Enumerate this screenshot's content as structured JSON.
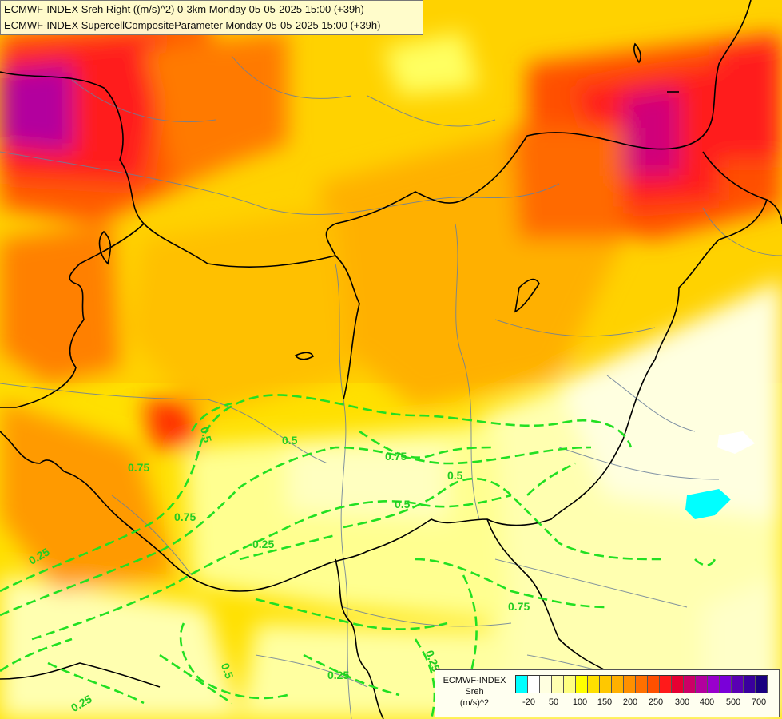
{
  "title": {
    "line1": "ECMWF-INDEX Sreh Right ((m/s)^2) 0-3km Monday 05-05-2025 15:00 (+39h)",
    "line2": "ECMWF-INDEX SupercellCompositeParameter Monday 05-05-2025 15:00 (+39h)"
  },
  "legend": {
    "source": "ECMWF-INDEX",
    "variable": "Sreh",
    "unit": "(m/s)^2",
    "colors": [
      "#00ffff",
      "#ffffff",
      "#ffffe0",
      "#ffffb0",
      "#ffff80",
      "#ffff00",
      "#ffe000",
      "#ffc800",
      "#ffb000",
      "#ff9000",
      "#ff7000",
      "#ff5000",
      "#ff1a1a",
      "#e60032",
      "#cc0066",
      "#b3009e",
      "#9900cc",
      "#7a00d9",
      "#5a00b3",
      "#3a009e",
      "#1a0080"
    ],
    "ticks": [
      "-20",
      "50",
      "100",
      "150",
      "200",
      "250",
      "300",
      "400",
      "500",
      "700"
    ]
  },
  "contour_labels": [
    "0.5",
    "0.75",
    "0.5",
    "0.75",
    "0.25",
    "0.75",
    "0.5",
    "0.25",
    "0.75",
    "0.5",
    "0.25",
    "0.5",
    "0.25",
    "0.25"
  ]
}
